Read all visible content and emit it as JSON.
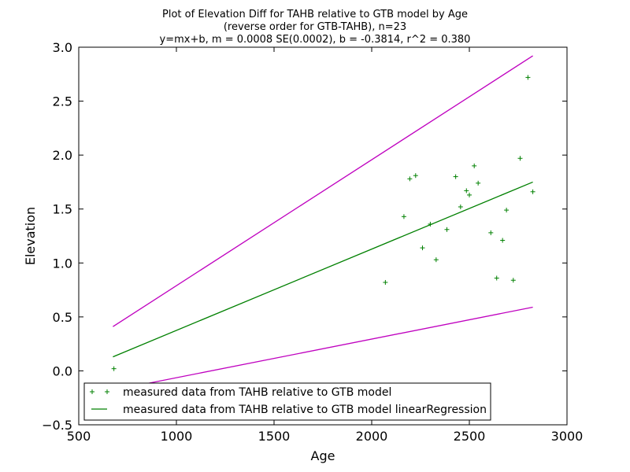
{
  "chart_data": {
    "type": "scatter",
    "title_lines": [
      "Plot of Elevation Diff for TAHB relative to GTB model by Age",
      "(reverse order for GTB-TAHB), n=23",
      "y=mx+b, m = 0.0008 SE(0.0002), b = -0.3814, r^2 = 0.380"
    ],
    "xlabel": "Age",
    "ylabel": "Elevation",
    "xlim": [
      500,
      3000
    ],
    "ylim": [
      -0.5,
      3.0
    ],
    "xticks": [
      500,
      1000,
      1500,
      2000,
      2500,
      3000
    ],
    "yticks": [
      -0.5,
      0.0,
      0.5,
      1.0,
      1.5,
      2.0,
      2.5,
      3.0
    ],
    "xtick_labels": [
      "500",
      "1000",
      "1500",
      "2000",
      "2500",
      "3000"
    ],
    "ytick_labels": [
      "−0.5",
      "0.0",
      "0.5",
      "1.0",
      "1.5",
      "2.0",
      "2.5",
      "3.0"
    ],
    "grid": false,
    "legend_position": "lower-left",
    "series": [
      {
        "name": "measured data from TAHB relative to GTB model",
        "kind": "scatter",
        "marker": "+",
        "color": "#008000",
        "points": [
          [
            680,
            0.02
          ],
          [
            2070,
            0.82
          ],
          [
            2165,
            1.43
          ],
          [
            2195,
            1.78
          ],
          [
            2225,
            1.81
          ],
          [
            2260,
            1.14
          ],
          [
            2300,
            1.36
          ],
          [
            2330,
            1.03
          ],
          [
            2385,
            1.31
          ],
          [
            2430,
            1.8
          ],
          [
            2455,
            1.52
          ],
          [
            2485,
            1.67
          ],
          [
            2500,
            1.63
          ],
          [
            2525,
            1.9
          ],
          [
            2545,
            1.74
          ],
          [
            2610,
            1.28
          ],
          [
            2640,
            0.86
          ],
          [
            2670,
            1.21
          ],
          [
            2690,
            1.49
          ],
          [
            2725,
            0.84
          ],
          [
            2760,
            1.97
          ],
          [
            2800,
            2.72
          ],
          [
            2825,
            1.66
          ]
        ]
      },
      {
        "name": "measured data from TAHB relative to GTB model linearRegression",
        "kind": "line",
        "color": "#008000",
        "points": [
          [
            675,
            0.13
          ],
          [
            2825,
            1.75
          ]
        ]
      },
      {
        "kind": "line",
        "color": "#bf00bf",
        "points": [
          [
            675,
            0.41
          ],
          [
            2825,
            2.92
          ]
        ]
      },
      {
        "kind": "line",
        "color": "#bf00bf",
        "points": [
          [
            675,
            -0.18
          ],
          [
            2825,
            0.59
          ]
        ]
      }
    ]
  }
}
